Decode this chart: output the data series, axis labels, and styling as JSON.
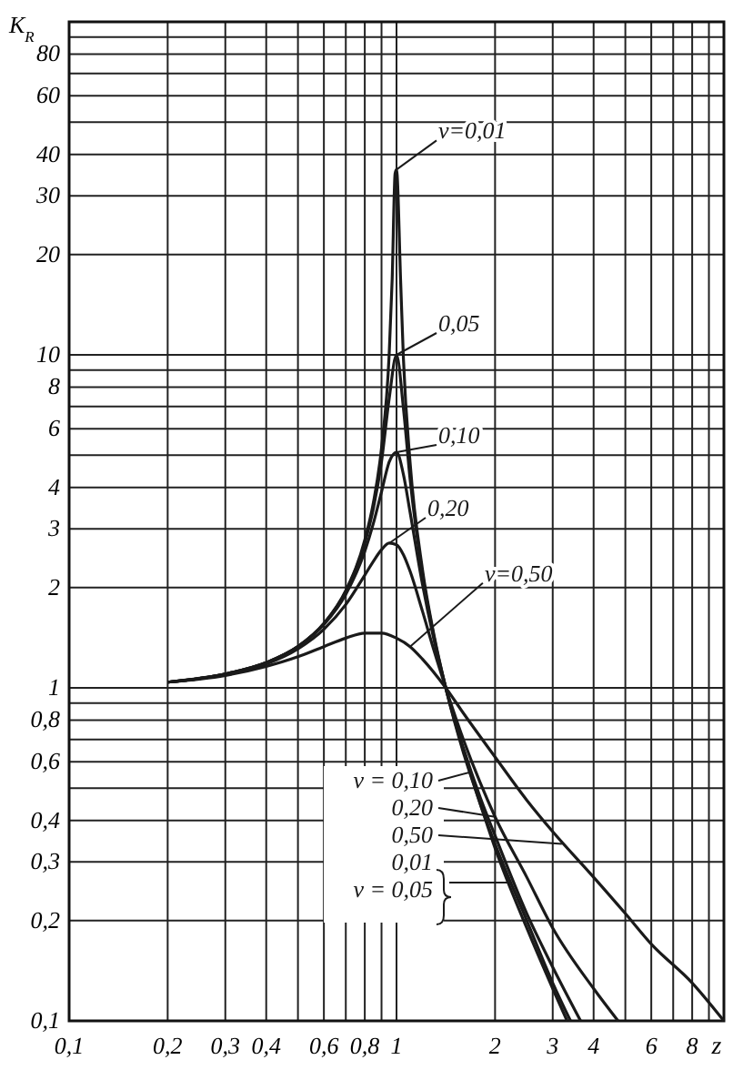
{
  "chart_data": {
    "type": "line",
    "xlabel": "z",
    "ylabel": "K$_{R}$",
    "log": "xy",
    "grid": true,
    "marker": "none",
    "line_style": "solid",
    "xlim": [
      0.1,
      10
    ],
    "ylim": [
      0.1,
      100
    ],
    "xticks": [
      {
        "value": 0.1,
        "label": "0,1"
      },
      {
        "value": 0.2,
        "label": "0,2"
      },
      {
        "value": 0.3,
        "label": "0,3"
      },
      {
        "value": 0.4,
        "label": "0,4"
      },
      {
        "value": 0.5,
        "label": null
      },
      {
        "value": 0.6,
        "label": "0,6"
      },
      {
        "value": 0.7,
        "label": null
      },
      {
        "value": 0.8,
        "label": "0,8"
      },
      {
        "value": 0.9,
        "label": null
      },
      1,
      2,
      3,
      4,
      {
        "value": 5,
        "label": null
      },
      6,
      {
        "value": 7,
        "label": null
      },
      8,
      {
        "value": 9,
        "label": null
      },
      {
        "value": 10,
        "label": null
      }
    ],
    "yticks": [
      {
        "value": 0.1,
        "label": "0,1"
      },
      {
        "value": 0.2,
        "label": "0,2"
      },
      {
        "value": 0.3,
        "label": "0,3"
      },
      {
        "value": 0.4,
        "label": "0,4"
      },
      {
        "value": 0.5,
        "label": null
      },
      {
        "value": 0.6,
        "label": "0,6"
      },
      {
        "value": 0.7,
        "label": null
      },
      {
        "value": 0.8,
        "label": "0,8"
      },
      {
        "value": 0.9,
        "label": null
      },
      1,
      2,
      3,
      4,
      {
        "value": 5,
        "label": null
      },
      6,
      {
        "value": 7,
        "label": null
      },
      8,
      {
        "value": 9,
        "label": null
      },
      10,
      20,
      30,
      40,
      {
        "value": 50,
        "label": null
      },
      60,
      {
        "value": 70,
        "label": null
      },
      80,
      {
        "value": 90,
        "label": null
      },
      {
        "value": 100,
        "label": null
      }
    ],
    "series": [
      {
        "color": "#1a1a1a",
        "x": [
          0.2,
          0.3,
          0.4,
          0.5,
          0.6,
          0.7,
          0.8,
          0.85,
          0.9,
          0.95,
          0.97,
          0.99,
          1.0,
          1.03,
          1.05,
          1.1,
          1.2,
          1.3,
          1.414,
          1.6,
          1.8,
          2,
          2.5,
          3,
          3.32
        ],
        "values": [
          1.04,
          1.1,
          1.19,
          1.33,
          1.56,
          1.96,
          2.78,
          3.6,
          5.26,
          10.1,
          16.9,
          35,
          36,
          16.4,
          9.7,
          4.76,
          2.27,
          1.45,
          1.0,
          0.64,
          0.45,
          0.33,
          0.19,
          0.125,
          0.1
        ]
      },
      {
        "color": "#1a1a1a",
        "x": [
          0.2,
          0.3,
          0.4,
          0.5,
          0.6,
          0.7,
          0.8,
          0.85,
          0.9,
          0.95,
          1.0,
          1.05,
          1.1,
          1.2,
          1.3,
          1.414,
          1.6,
          1.8,
          2,
          2.5,
          3,
          3.4
        ],
        "values": [
          1.04,
          1.1,
          1.19,
          1.33,
          1.56,
          1.95,
          2.72,
          3.46,
          4.78,
          7.4,
          10,
          6.9,
          4.24,
          2.2,
          1.43,
          1.0,
          0.65,
          0.45,
          0.34,
          0.2,
          0.13,
          0.1
        ]
      },
      {
        "color": "#1a1a1a",
        "x": [
          0.2,
          0.3,
          0.4,
          0.5,
          0.6,
          0.7,
          0.8,
          0.85,
          0.9,
          0.95,
          1.0,
          1.05,
          1.1,
          1.2,
          1.3,
          1.414,
          1.6,
          1.8,
          2,
          2.5,
          3,
          3.65
        ],
        "values": [
          1.04,
          1.1,
          1.19,
          1.33,
          1.55,
          1.91,
          2.57,
          3.12,
          3.88,
          4.77,
          5.1,
          4.37,
          3.37,
          2.05,
          1.4,
          1.0,
          0.66,
          0.47,
          0.36,
          0.21,
          0.145,
          0.1
        ]
      },
      {
        "color": "#1a1a1a",
        "x": [
          0.2,
          0.3,
          0.4,
          0.5,
          0.6,
          0.7,
          0.8,
          0.85,
          0.9,
          0.95,
          1.0,
          1.05,
          1.1,
          1.2,
          1.3,
          1.414,
          1.6,
          1.8,
          2,
          2.5,
          3,
          4,
          4.75
        ],
        "values": [
          1.04,
          1.1,
          1.18,
          1.31,
          1.5,
          1.78,
          2.18,
          2.4,
          2.6,
          2.72,
          2.69,
          2.51,
          2.24,
          1.7,
          1.3,
          1.0,
          0.7,
          0.52,
          0.41,
          0.27,
          0.19,
          0.125,
          0.1
        ]
      },
      {
        "color": "#1a1a1a",
        "x": [
          0.2,
          0.3,
          0.4,
          0.5,
          0.6,
          0.7,
          0.8,
          0.9,
          1.0,
          1.1,
          1.2,
          1.414,
          1.6,
          2,
          2.5,
          3,
          4,
          5,
          6,
          8,
          10
        ],
        "values": [
          1.04,
          1.09,
          1.16,
          1.24,
          1.33,
          1.41,
          1.46,
          1.46,
          1.41,
          1.33,
          1.22,
          1.0,
          0.84,
          0.62,
          0.46,
          0.37,
          0.27,
          0.21,
          0.17,
          0.13,
          0.1
        ]
      }
    ],
    "annotations": [
      {
        "text": "ν=0,01",
        "x": 1.0,
        "y": 36
      },
      {
        "text": "0,05",
        "x": 1.0,
        "y": 10
      },
      {
        "text": "0,10",
        "x": 1.0,
        "y": 5.1
      },
      {
        "text": "0,20",
        "x": 0.95,
        "y": 2.72
      },
      {
        "text": "ν=0,50",
        "x": 1.1,
        "y": 1.33
      },
      {
        "text": "ν = 0,10",
        "x": 1.7,
        "y": 0.56
      },
      {
        "text": "0,20",
        "x": 2,
        "y": 0.41
      },
      {
        "text": "0,50",
        "x": 3.2,
        "y": 0.34
      },
      {
        "text": "0,01",
        "x": 2.2,
        "y": 0.26
      },
      {
        "text": "ν = 0,05",
        "x": 2.2,
        "y": 0.26
      }
    ]
  }
}
